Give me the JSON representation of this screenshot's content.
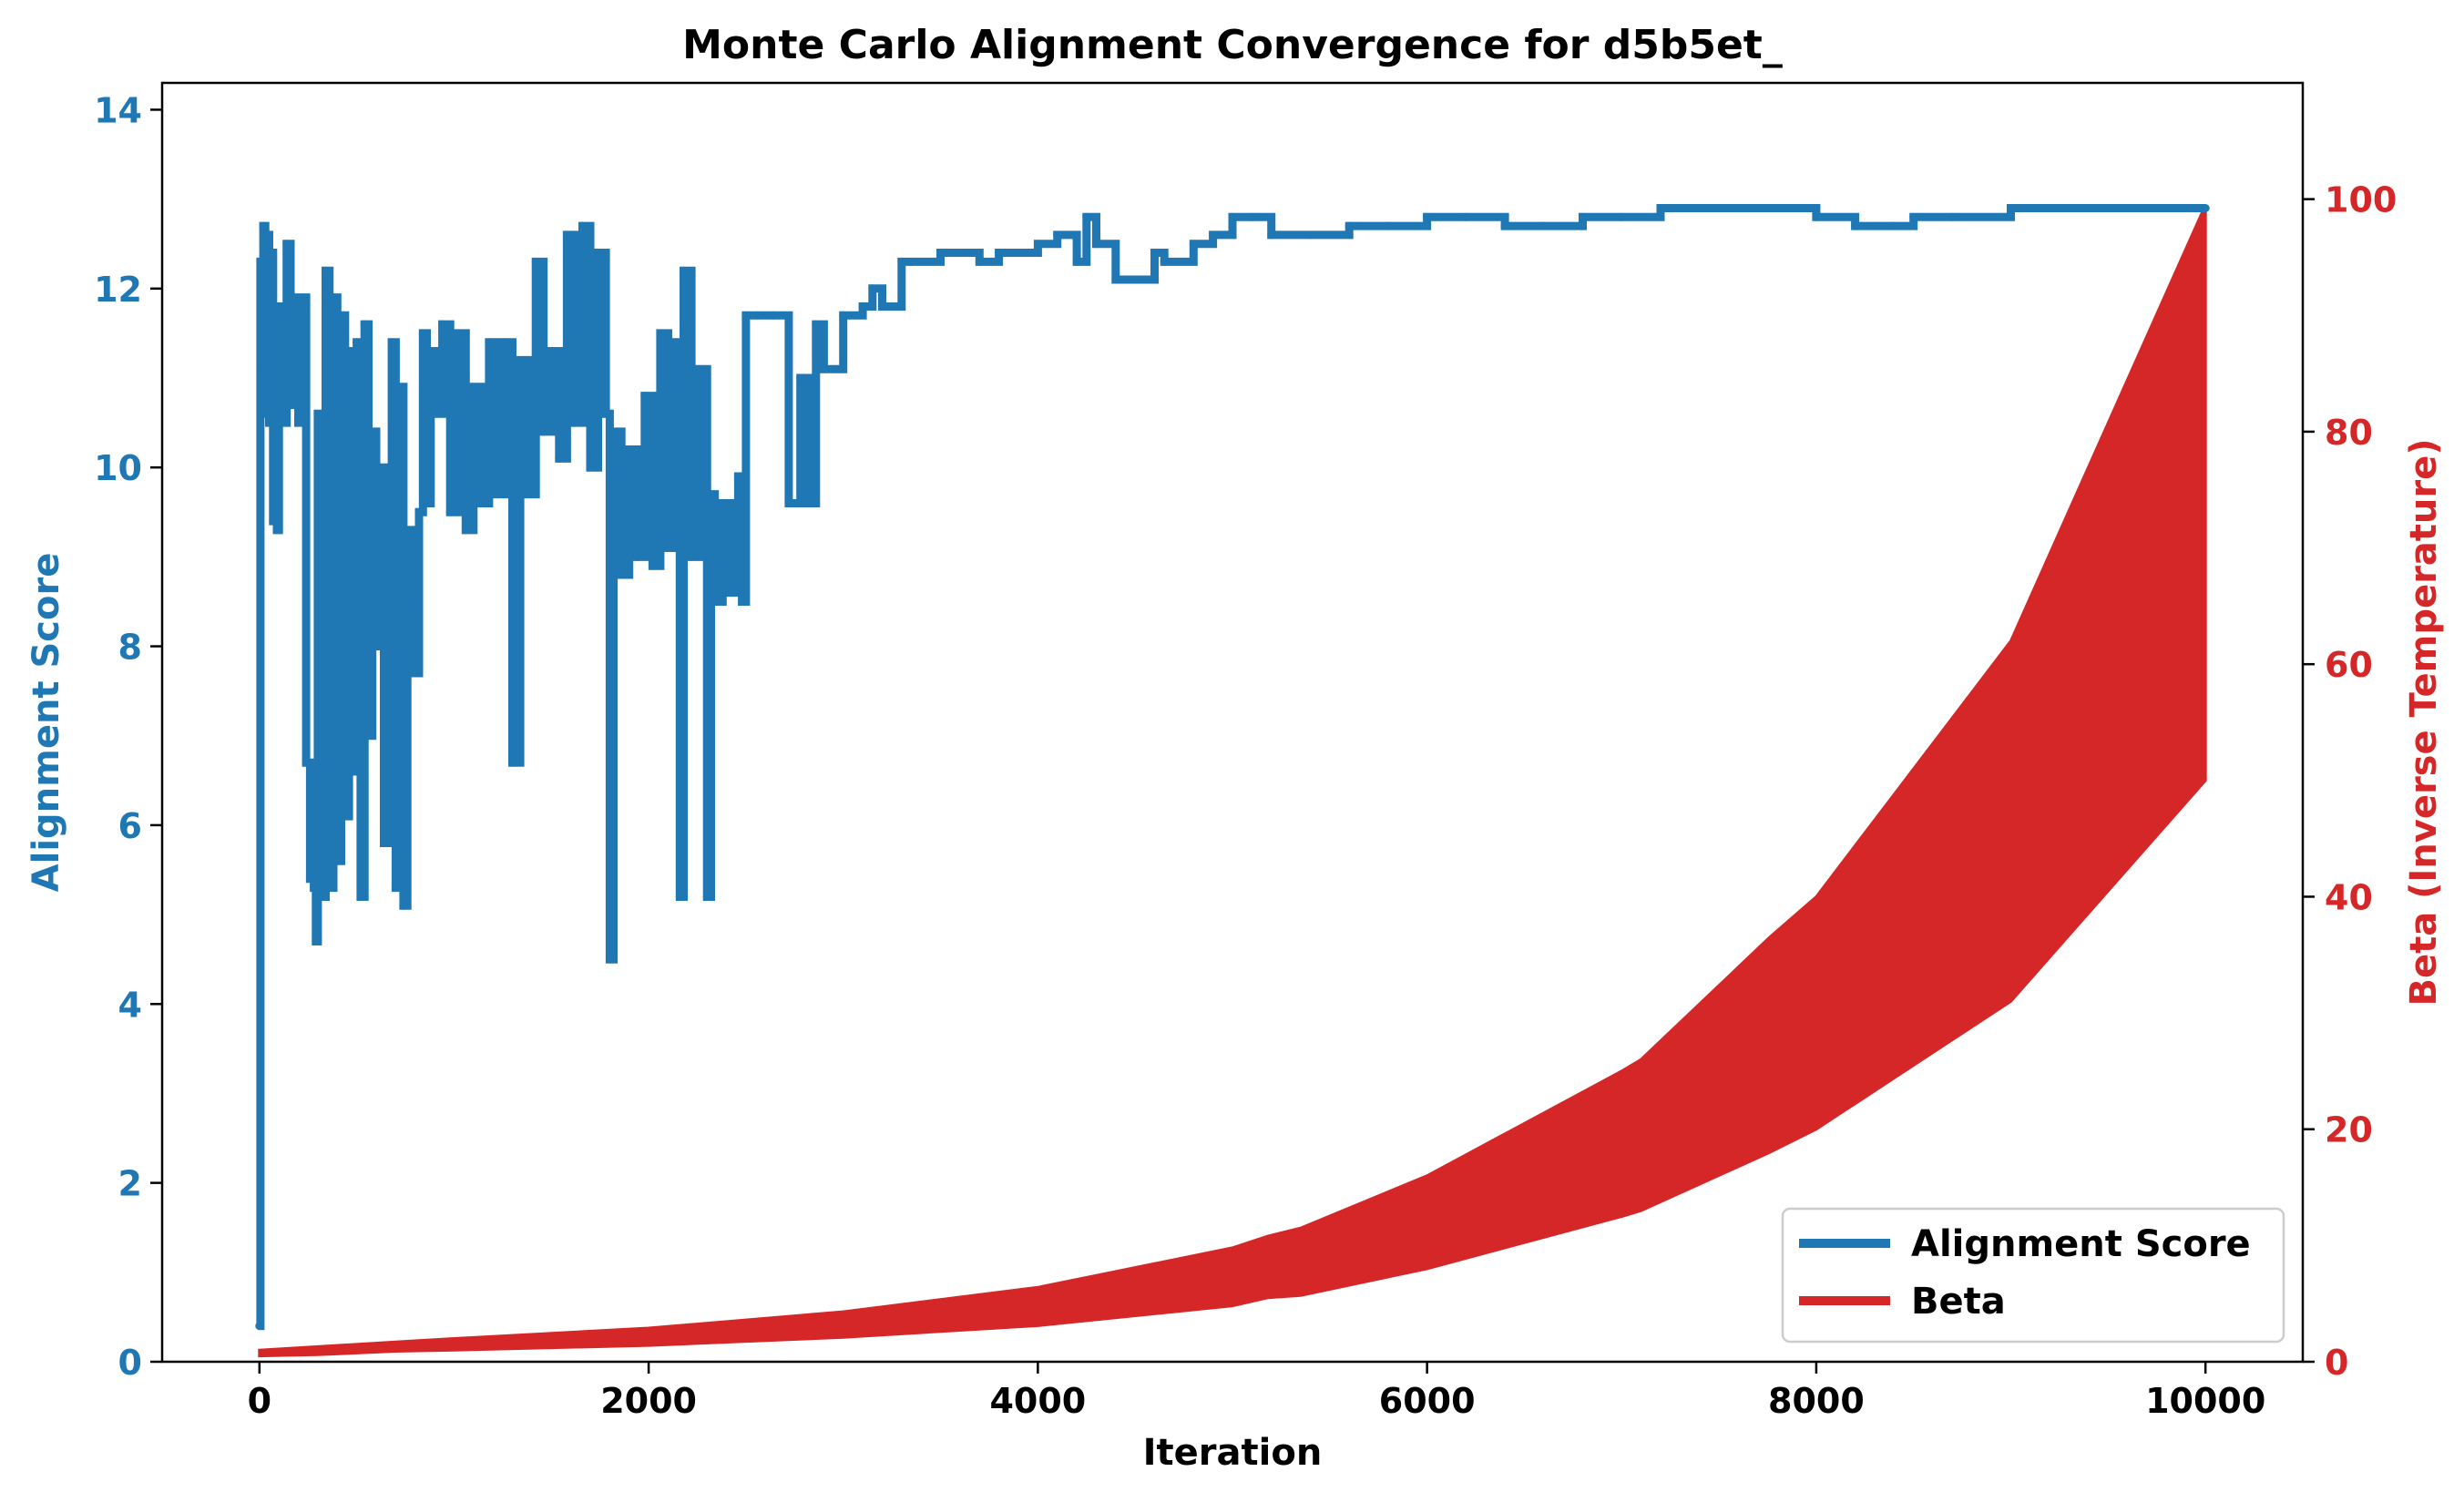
{
  "chart_data": {
    "type": "line",
    "title": "Monte Carlo Alignment Convergence for d5b5et_",
    "xlabel": "Iteration",
    "ylabel_left": "Alignment Score",
    "ylabel_right": "Beta (Inverse Temperature)",
    "xlim": [
      -500,
      10500
    ],
    "ylim_left": [
      0,
      14.3
    ],
    "ylim_right": [
      0,
      110
    ],
    "x_ticks": [
      "0",
      "2000",
      "4000",
      "6000",
      "8000",
      "10000"
    ],
    "y_left_ticks": [
      "0",
      "2",
      "4",
      "6",
      "8",
      "10",
      "12",
      "14"
    ],
    "y_right_ticks": [
      "0",
      "20",
      "40",
      "60",
      "80",
      "100"
    ],
    "grid": false,
    "legend_position": "lower-right",
    "series": [
      {
        "name": "Alignment Score",
        "axis": "left",
        "color": "#1f77b4",
        "x": [
          0,
          5,
          10,
          20,
          30,
          40,
          50,
          60,
          70,
          80,
          90,
          100,
          120,
          140,
          160,
          180,
          200,
          220,
          240,
          260,
          270,
          280,
          290,
          300,
          320,
          340,
          360,
          380,
          400,
          420,
          440,
          460,
          480,
          500,
          520,
          540,
          560,
          580,
          600,
          620,
          640,
          660,
          680,
          700,
          720,
          740,
          760,
          780,
          800,
          820,
          840,
          860,
          880,
          900,
          940,
          980,
          1020,
          1060,
          1100,
          1140,
          1180,
          1220,
          1260,
          1300,
          1340,
          1380,
          1420,
          1460,
          1500,
          1540,
          1580,
          1620,
          1660,
          1700,
          1740,
          1780,
          1800,
          1820,
          1860,
          1900,
          1940,
          1980,
          2020,
          2060,
          2100,
          2140,
          2160,
          2180,
          2220,
          2260,
          2300,
          2320,
          2340,
          2380,
          2420,
          2460,
          2480,
          2500,
          2560,
          2640,
          2720,
          2780,
          2820,
          2860,
          2900,
          3000,
          3100,
          3150,
          3200,
          3300,
          3350,
          3500,
          3700,
          3800,
          4000,
          4100,
          4200,
          4250,
          4300,
          4400,
          4600,
          4650,
          4800,
          4900,
          5000,
          5100,
          5200,
          5400,
          5600,
          5800,
          6000,
          6200,
          6400,
          6600,
          6800,
          7000,
          7200,
          7400,
          7600,
          7800,
          8000,
          8200,
          8400,
          8500,
          8700,
          9000,
          9300,
          9600,
          10000
        ],
        "values": [
          0.4,
          12.3,
          10.6,
          12.7,
          11.1,
          12.6,
          10.5,
          12.4,
          9.4,
          11.7,
          9.3,
          11.8,
          10.5,
          12.5,
          10.7,
          11.9,
          10.5,
          11.9,
          6.7,
          5.4,
          6.6,
          5.3,
          4.7,
          10.6,
          5.2,
          12.2,
          5.3,
          11.9,
          5.6,
          11.7,
          6.1,
          11.3,
          6.6,
          11.4,
          5.2,
          11.6,
          7.0,
          10.4,
          8.0,
          10.0,
          5.8,
          7.1,
          11.4,
          5.3,
          10.9,
          5.1,
          9.3,
          8.5,
          7.7,
          9.5,
          11.5,
          9.6,
          11.3,
          10.6,
          11.6,
          9.5,
          11.5,
          9.3,
          10.9,
          9.6,
          11.4,
          9.7,
          11.4,
          6.7,
          11.2,
          9.7,
          12.3,
          10.4,
          11.3,
          10.1,
          12.6,
          10.5,
          12.7,
          10.0,
          12.4,
          10.6,
          4.5,
          10.4,
          8.8,
          10.2,
          9.0,
          10.8,
          8.9,
          11.5,
          9.1,
          11.4,
          5.2,
          12.2,
          9.0,
          11.1,
          5.2,
          9.7,
          8.5,
          9.6,
          8.6,
          9.9,
          8.5,
          11.7,
          11.7,
          11.7,
          9.6,
          11.0,
          9.6,
          11.6,
          11.1,
          11.7,
          11.8,
          12.0,
          11.8,
          12.3,
          12.3,
          12.4,
          12.3,
          12.4,
          12.5,
          12.6,
          12.3,
          12.8,
          12.5,
          12.1,
          12.4,
          12.3,
          12.5,
          12.6,
          12.8,
          12.8,
          12.6,
          12.6,
          12.7,
          12.7,
          12.8,
          12.8,
          12.7,
          12.7,
          12.8,
          12.8,
          12.9,
          12.9,
          12.9,
          12.9,
          12.8,
          12.7,
          12.7,
          12.8,
          12.8,
          12.9,
          12.9,
          12.9,
          12.9
        ]
      },
      {
        "name": "Beta",
        "axis": "right",
        "color": "#d62728",
        "x": [
          0,
          300,
          700,
          1000,
          2000,
          3000,
          4000,
          5000,
          5180,
          5350,
          6000,
          7000,
          7100,
          7760,
          8000,
          9000,
          10000
        ],
        "lower": [
          0.5,
          0.6,
          0.9,
          1.0,
          1.4,
          2.1,
          3.1,
          4.8,
          5.5,
          5.7,
          8.0,
          12.5,
          13.0,
          18.0,
          20.0,
          31.0,
          50.0
        ],
        "upper": [
          1.0,
          1.3,
          1.7,
          2.0,
          2.9,
          4.3,
          6.4,
          9.8,
          10.8,
          11.5,
          16.0,
          25.0,
          26.0,
          36.5,
          40.0,
          62.0,
          99.5
        ]
      }
    ]
  }
}
